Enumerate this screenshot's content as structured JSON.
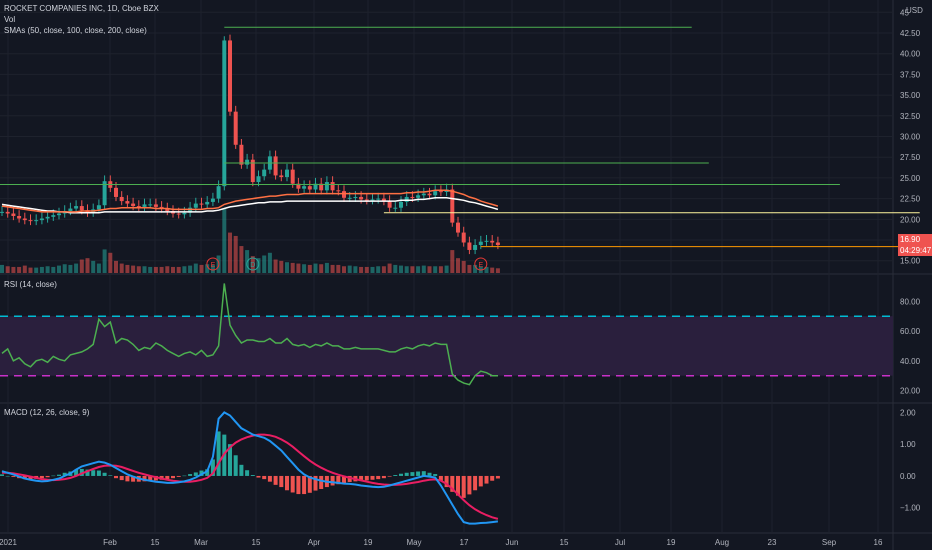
{
  "header": {
    "symbol_line": "ROCKET COMPANIES INC, 1D, Cboe BZX",
    "vol_label": "Vol",
    "sma_label": "SMAs (50, close, 100, close, 200, close)",
    "currency": "USD"
  },
  "rsi_panel": {
    "label": "RSI (14, close)"
  },
  "macd_panel": {
    "label": "MACD (12, 26, close, 9)"
  },
  "price_badges": {
    "last": "16.90",
    "countdown": "04:29:47"
  },
  "colors": {
    "background": "#131722",
    "grid": "#1e222d",
    "up": "#26a69a",
    "down": "#ef5350",
    "rsi_line": "#4caf50",
    "rsi_band": "#2a1f3d",
    "rsi_upper_dash": "#00bcd4",
    "rsi_lower_dash": "#c930c9",
    "macd_line": "#2196f3",
    "signal_line": "#e91e63",
    "sma50": "#ff7043",
    "sma100": "#ffffff",
    "sma_short": "#ef5350",
    "level_green": "#4caf50",
    "level_yellow": "#fff59d",
    "level_orange": "#ff9800",
    "earnings": "#e53935"
  },
  "chart_data": [
    {
      "type": "candlestick",
      "title": "ROCKET COMPANIES INC, 1D, Cboe BZX",
      "y_axis_ticks": [
        15.0,
        17.5,
        20.0,
        22.5,
        25.0,
        27.5,
        30.0,
        32.5,
        35.0,
        37.5,
        40.0,
        42.5,
        45.0
      ],
      "y_tick_labels": [
        "15.00",
        "17.50",
        "20.00",
        "22.50",
        "25.00",
        "27.50",
        "30.00",
        "32.50",
        "35.00",
        "37.50",
        "40.00",
        "42.50",
        "45"
      ],
      "ylim": [
        14.0,
        46.0
      ],
      "x_axis_labels": [
        "2021",
        "Feb",
        "15",
        "Mar",
        "15",
        "Apr",
        "19",
        "May",
        "17",
        "Jun",
        "15",
        "Jul",
        "19",
        "Aug",
        "23",
        "Sep",
        "16"
      ],
      "closes": [
        20.9,
        20.7,
        20.4,
        20.1,
        19.9,
        19.8,
        19.9,
        20.1,
        20.3,
        20.5,
        20.7,
        21.0,
        21.3,
        21.6,
        21.1,
        20.8,
        21.2,
        21.7,
        24.6,
        23.8,
        22.7,
        22.2,
        21.9,
        21.6,
        21.5,
        21.8,
        21.8,
        21.5,
        21.3,
        21.0,
        20.7,
        20.6,
        20.8,
        21.4,
        21.9,
        21.8,
        22.1,
        22.5,
        24.0,
        41.6,
        33.0,
        29.0,
        26.6,
        27.2,
        24.5,
        25.2,
        26.0,
        27.6,
        25.3,
        25.1,
        26.0,
        24.3,
        23.7,
        24.0,
        23.6,
        24.3,
        23.5,
        24.5,
        23.5,
        23.4,
        22.6,
        22.6,
        22.7,
        22.4,
        22.3,
        22.4,
        22.5,
        22.2,
        21.4,
        21.4,
        22.1,
        22.7,
        22.6,
        22.9,
        23.1,
        22.9,
        23.4,
        23.3,
        23.6,
        19.6,
        18.4,
        17.2,
        16.3,
        16.9,
        17.3,
        17.4,
        17.2,
        16.9
      ],
      "volumes": [
        12,
        10,
        9,
        9,
        11,
        8,
        8,
        9,
        10,
        9,
        11,
        13,
        12,
        14,
        20,
        22,
        18,
        14,
        35,
        30,
        18,
        14,
        12,
        11,
        10,
        10,
        9,
        9,
        9,
        10,
        9,
        9,
        10,
        11,
        14,
        12,
        13,
        12,
        26,
        95,
        60,
        55,
        40,
        34,
        25,
        22,
        26,
        30,
        20,
        18,
        16,
        15,
        14,
        13,
        12,
        14,
        13,
        15,
        12,
        12,
        10,
        11,
        10,
        9,
        9,
        9,
        10,
        10,
        14,
        12,
        11,
        10,
        10,
        10,
        11,
        10,
        10,
        10,
        11,
        34,
        22,
        18,
        12,
        12,
        10,
        9,
        8,
        7
      ],
      "sma50": [
        21.6,
        21.5,
        21.4,
        21.3,
        21.2,
        21.1,
        21.0,
        20.9,
        20.9,
        20.9,
        20.9,
        20.9,
        20.9,
        20.9,
        21.0,
        21.0,
        21.0,
        21.1,
        21.2,
        21.3,
        21.3,
        21.4,
        21.4,
        21.4,
        21.4,
        21.4,
        21.4,
        21.3,
        21.3,
        21.3,
        21.2,
        21.2,
        21.2,
        21.2,
        21.2,
        21.2,
        21.3,
        21.3,
        21.4,
        21.8,
        22.0,
        22.2,
        22.3,
        22.4,
        22.5,
        22.6,
        22.7,
        22.8,
        22.8,
        22.9,
        23.0,
        23.0,
        23.0,
        23.1,
        23.1,
        23.1,
        23.1,
        23.1,
        23.1,
        23.1,
        23.1,
        23.1,
        23.1,
        23.1,
        23.1,
        23.1,
        23.1,
        23.1,
        23.1,
        23.1,
        23.1,
        23.2,
        23.2,
        23.3,
        23.3,
        23.4,
        23.5,
        23.5,
        23.5,
        23.4,
        23.2,
        23.0,
        22.7,
        22.5,
        22.2,
        22.0,
        21.8,
        21.6
      ],
      "sma100": [
        21.8,
        21.7,
        21.6,
        21.5,
        21.4,
        21.3,
        21.2,
        21.1,
        21.0,
        21.0,
        20.9,
        20.9,
        20.8,
        20.8,
        20.8,
        20.8,
        20.8,
        20.8,
        20.9,
        20.9,
        20.9,
        20.9,
        20.9,
        20.9,
        20.9,
        20.9,
        20.9,
        20.9,
        20.9,
        20.9,
        20.9,
        20.9,
        20.9,
        20.9,
        20.9,
        20.9,
        21.0,
        21.0,
        21.1,
        21.3,
        21.5,
        21.6,
        21.7,
        21.8,
        21.9,
        22.0,
        22.0,
        22.1,
        22.1,
        22.1,
        22.2,
        22.2,
        22.2,
        22.2,
        22.2,
        22.2,
        22.2,
        22.2,
        22.2,
        22.2,
        22.2,
        22.2,
        22.2,
        22.2,
        22.2,
        22.2,
        22.2,
        22.2,
        22.2,
        22.2,
        22.3,
        22.3,
        22.3,
        22.4,
        22.4,
        22.5,
        22.6,
        22.6,
        22.6,
        22.5,
        22.4,
        22.3,
        22.1,
        22.0,
        21.8,
        21.6,
        21.4,
        21.2
      ],
      "levels": [
        {
          "price": 43.2,
          "x_start": 39,
          "x_end": 121,
          "color": "#4caf50"
        },
        {
          "price": 26.8,
          "x_start": 39,
          "x_end": 124,
          "color": "#4caf50"
        },
        {
          "price": 24.2,
          "x_start": 0,
          "x_end": 147,
          "color": "#4caf50"
        },
        {
          "price": 20.8,
          "x_start": 67,
          "x_end": 161,
          "color": "#fff59d"
        },
        {
          "price": 16.7,
          "x_start": 84,
          "x_end": 168,
          "color": "#ff9800"
        }
      ],
      "earnings_markers": [
        {
          "label": "E",
          "x": 37
        },
        {
          "label": "D",
          "x": 44
        },
        {
          "label": "E",
          "x": 84
        },
        {
          "label": "E",
          "x": 172
        }
      ]
    },
    {
      "type": "line",
      "title": "RSI (14, close)",
      "y_axis_ticks": [
        20,
        40,
        60,
        80
      ],
      "y_tick_labels": [
        "20.00",
        "40.00",
        "60.00",
        "80.00"
      ],
      "ylim": [
        15,
        95
      ],
      "upper_band": 70,
      "lower_band": 30,
      "values": [
        45,
        48,
        40,
        42,
        38,
        36,
        40,
        41,
        39,
        43,
        41,
        40,
        44,
        45,
        46,
        48,
        51,
        68,
        63,
        66,
        52,
        55,
        54,
        51,
        47,
        49,
        48,
        52,
        50,
        47,
        45,
        43,
        45,
        46,
        44,
        47,
        43,
        44,
        50,
        92,
        64,
        57,
        52,
        54,
        54,
        53,
        53,
        55,
        52,
        52,
        55,
        51,
        50,
        51,
        49,
        51,
        50,
        52,
        50,
        50,
        48,
        48,
        49,
        48,
        48,
        48,
        48,
        47,
        46,
        46,
        48,
        49,
        48,
        50,
        51,
        50,
        52,
        51,
        51,
        31,
        27,
        25,
        24,
        30,
        33,
        32,
        30,
        30
      ]
    },
    {
      "type": "bar+line",
      "title": "MACD (12, 26, close, 9)",
      "y_axis_ticks": [
        -1.0,
        0.0,
        1.0,
        2.0
      ],
      "y_tick_labels": [
        "−1.00",
        "0.00",
        "1.00",
        "2.00"
      ],
      "ylim": [
        -1.7,
        2.2
      ],
      "macd": [
        0.15,
        0.1,
        0.05,
        -0.02,
        -0.08,
        -0.12,
        -0.15,
        -0.17,
        -0.16,
        -0.12,
        -0.08,
        0.0,
        0.08,
        0.2,
        0.3,
        0.35,
        0.4,
        0.45,
        0.42,
        0.35,
        0.25,
        0.15,
        0.05,
        -0.02,
        -0.08,
        -0.12,
        -0.15,
        -0.18,
        -0.2,
        -0.22,
        -0.22,
        -0.2,
        -0.17,
        -0.12,
        -0.05,
        0.05,
        0.15,
        0.6,
        1.8,
        2.0,
        1.9,
        1.7,
        1.5,
        1.4,
        1.3,
        1.25,
        1.2,
        1.1,
        0.95,
        0.8,
        0.6,
        0.4,
        0.2,
        0.05,
        -0.05,
        -0.1,
        -0.15,
        -0.18,
        -0.2,
        -0.22,
        -0.24,
        -0.25,
        -0.27,
        -0.3,
        -0.32,
        -0.34,
        -0.35,
        -0.34,
        -0.3,
        -0.25,
        -0.2,
        -0.15,
        -0.1,
        -0.05,
        0.0,
        -0.02,
        -0.05,
        -0.3,
        -0.6,
        -0.9,
        -1.2,
        -1.45,
        -1.5,
        -1.5,
        -1.48,
        -1.47,
        -1.45,
        -1.43
      ],
      "signal": [
        0.1,
        0.1,
        0.08,
        0.05,
        0.02,
        -0.02,
        -0.06,
        -0.1,
        -0.12,
        -0.13,
        -0.12,
        -0.1,
        -0.06,
        0.0,
        0.08,
        0.15,
        0.22,
        0.28,
        0.32,
        0.33,
        0.32,
        0.28,
        0.22,
        0.16,
        0.1,
        0.05,
        0.0,
        -0.04,
        -0.08,
        -0.12,
        -0.15,
        -0.17,
        -0.18,
        -0.18,
        -0.16,
        -0.12,
        -0.06,
        0.08,
        0.4,
        0.7,
        0.9,
        1.05,
        1.15,
        1.22,
        1.27,
        1.3,
        1.3,
        1.28,
        1.23,
        1.15,
        1.05,
        0.92,
        0.77,
        0.62,
        0.48,
        0.36,
        0.26,
        0.17,
        0.1,
        0.04,
        -0.01,
        -0.06,
        -0.1,
        -0.14,
        -0.18,
        -0.22,
        -0.25,
        -0.27,
        -0.28,
        -0.28,
        -0.27,
        -0.25,
        -0.22,
        -0.19,
        -0.15,
        -0.12,
        -0.11,
        -0.15,
        -0.25,
        -0.4,
        -0.58,
        -0.76,
        -0.92,
        -1.05,
        -1.15,
        -1.23,
        -1.3,
        -1.35
      ]
    }
  ]
}
